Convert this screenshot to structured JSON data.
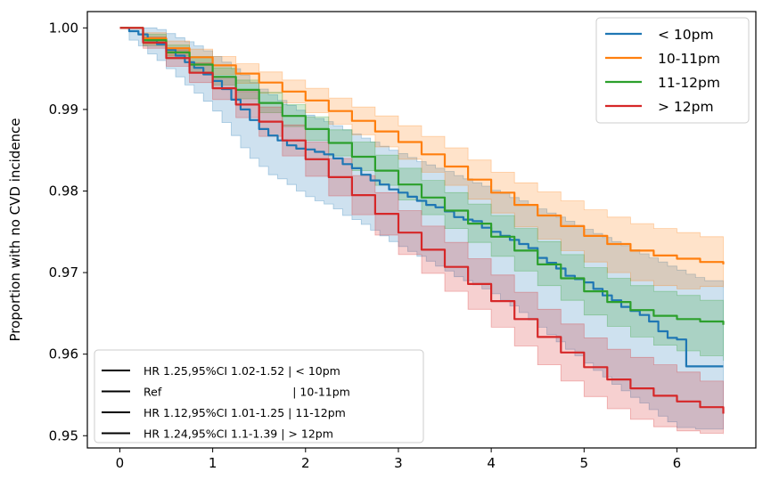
{
  "chart_data": {
    "type": "line",
    "title": "",
    "xlabel": "",
    "ylabel": "Proportion with no CVD incidence",
    "xlim": [
      -0.35,
      6.85
    ],
    "ylim": [
      0.9485,
      1.002
    ],
    "xticks": [
      "0",
      "1",
      "2",
      "3",
      "4",
      "5",
      "6"
    ],
    "yticks": [
      "1.00",
      "0.99",
      "0.98",
      "0.97",
      "0.96",
      "0.95"
    ],
    "grid": false,
    "legend_position": "top-right",
    "series": [
      {
        "name": "< 10pm",
        "color": "#1f77b4",
        "x": [
          0,
          0.1,
          0.2,
          0.3,
          0.4,
          0.5,
          0.6,
          0.7,
          0.8,
          0.9,
          1.0,
          1.1,
          1.2,
          1.3,
          1.4,
          1.5,
          1.6,
          1.7,
          1.8,
          1.9,
          2.0,
          2.1,
          2.2,
          2.3,
          2.4,
          2.5,
          2.6,
          2.7,
          2.8,
          2.9,
          3.0,
          3.1,
          3.2,
          3.3,
          3.4,
          3.5,
          3.6,
          3.7,
          3.8,
          3.9,
          4.0,
          4.1,
          4.2,
          4.3,
          4.4,
          4.5,
          4.6,
          4.7,
          4.8,
          4.9,
          5.0,
          5.1,
          5.2,
          5.3,
          5.4,
          5.5,
          5.6,
          5.7,
          5.8,
          5.9,
          6.0,
          6.1,
          6.2,
          6.3,
          6.4,
          6.5
        ],
        "y": [
          1.0,
          0.9996,
          0.9992,
          0.9985,
          0.998,
          0.9973,
          0.9966,
          0.9958,
          0.9951,
          0.9943,
          0.9935,
          0.9925,
          0.9912,
          0.99,
          0.9887,
          0.9876,
          0.9868,
          0.9862,
          0.9856,
          0.9852,
          0.9851,
          0.9848,
          0.9845,
          0.984,
          0.9833,
          0.9828,
          0.982,
          0.9813,
          0.9808,
          0.9802,
          0.9798,
          0.9793,
          0.9788,
          0.9783,
          0.978,
          0.9775,
          0.9768,
          0.9765,
          0.9763,
          0.9755,
          0.975,
          0.9745,
          0.974,
          0.9735,
          0.973,
          0.9718,
          0.9712,
          0.9705,
          0.9696,
          0.9692,
          0.9688,
          0.968,
          0.9672,
          0.9666,
          0.9658,
          0.9653,
          0.9648,
          0.964,
          0.9628,
          0.962,
          0.9618,
          0.9585,
          0.9585,
          0.9585,
          0.9585,
          0.9585
        ],
        "ci_lower": [
          1.0,
          0.9985,
          0.9978,
          0.9968,
          0.996,
          0.995,
          0.994,
          0.993,
          0.992,
          0.991,
          0.9898,
          0.9884,
          0.9868,
          0.9853,
          0.984,
          0.983,
          0.982,
          0.9815,
          0.9808,
          0.98,
          0.9793,
          0.9788,
          0.9784,
          0.9778,
          0.977,
          0.9765,
          0.9759,
          0.9752,
          0.9745,
          0.9738,
          0.9732,
          0.9726,
          0.972,
          0.9714,
          0.9708,
          0.9702,
          0.9695,
          0.969,
          0.9685,
          0.968,
          0.9674,
          0.9666,
          0.9659,
          0.9651,
          0.9642,
          0.9633,
          0.9624,
          0.9615,
          0.9606,
          0.9598,
          0.9589,
          0.958,
          0.9572,
          0.9563,
          0.9555,
          0.9547,
          0.954,
          0.9532,
          0.9524,
          0.9517,
          0.951,
          0.951,
          0.9508,
          0.9508,
          0.9508,
          0.9508
        ],
        "ci_upper": [
          1.0,
          1.0,
          1.0,
          1.0,
          0.9998,
          0.9993,
          0.9988,
          0.9983,
          0.9978,
          0.9972,
          0.9965,
          0.9958,
          0.995,
          0.9942,
          0.9933,
          0.9925,
          0.9918,
          0.9911,
          0.9905,
          0.9899,
          0.9893,
          0.9889,
          0.9885,
          0.988,
          0.9875,
          0.987,
          0.9865,
          0.986,
          0.9855,
          0.985,
          0.9846,
          0.9841,
          0.9836,
          0.9832,
          0.9828,
          0.9824,
          0.9819,
          0.9815,
          0.981,
          0.9806,
          0.9801,
          0.9797,
          0.9792,
          0.9788,
          0.9783,
          0.9778,
          0.9773,
          0.9768,
          0.9763,
          0.9758,
          0.9753,
          0.9748,
          0.9743,
          0.9738,
          0.9733,
          0.9728,
          0.9723,
          0.9718,
          0.9713,
          0.9708,
          0.9703,
          0.9698,
          0.9694,
          0.969,
          0.969,
          0.969
        ]
      },
      {
        "name": "10-11pm",
        "color": "#ff7f0e",
        "x": [
          0,
          0.25,
          0.5,
          0.75,
          1.0,
          1.25,
          1.5,
          1.75,
          2.0,
          2.25,
          2.5,
          2.75,
          3.0,
          3.25,
          3.5,
          3.75,
          4.0,
          4.25,
          4.5,
          4.75,
          5.0,
          5.25,
          5.5,
          5.75,
          6.0,
          6.25,
          6.5
        ],
        "y": [
          1.0,
          0.9987,
          0.9975,
          0.9964,
          0.9954,
          0.9944,
          0.9933,
          0.9922,
          0.9911,
          0.9898,
          0.9886,
          0.9873,
          0.986,
          0.9845,
          0.983,
          0.9814,
          0.9798,
          0.9783,
          0.977,
          0.9757,
          0.9745,
          0.9735,
          0.9727,
          0.9721,
          0.9717,
          0.9713,
          0.971
        ],
        "ci_lower": [
          1.0,
          0.998,
          0.9966,
          0.9954,
          0.9943,
          0.9932,
          0.992,
          0.9908,
          0.9896,
          0.9882,
          0.9869,
          0.9854,
          0.9839,
          0.9823,
          0.9807,
          0.979,
          0.9773,
          0.9756,
          0.9741,
          0.9727,
          0.9713,
          0.97,
          0.969,
          0.9684,
          0.968,
          0.9683,
          0.9682
        ],
        "ci_upper": [
          1.0,
          0.9994,
          0.9984,
          0.9974,
          0.9965,
          0.9956,
          0.9946,
          0.9936,
          0.9926,
          0.9914,
          0.9903,
          0.9892,
          0.988,
          0.9867,
          0.9853,
          0.9838,
          0.9823,
          0.981,
          0.9799,
          0.9788,
          0.9777,
          0.9768,
          0.976,
          0.9754,
          0.9749,
          0.9744,
          0.9738
        ]
      },
      {
        "name": "11-12pm",
        "color": "#2ca02c",
        "x": [
          0,
          0.25,
          0.5,
          0.75,
          1.0,
          1.25,
          1.5,
          1.75,
          2.0,
          2.25,
          2.5,
          2.75,
          3.0,
          3.25,
          3.5,
          3.75,
          4.0,
          4.25,
          4.5,
          4.75,
          5.0,
          5.25,
          5.5,
          5.75,
          6.0,
          6.25,
          6.5
        ],
        "y": [
          1.0,
          0.9985,
          0.997,
          0.9955,
          0.994,
          0.9924,
          0.9908,
          0.9892,
          0.9876,
          0.9859,
          0.9842,
          0.9825,
          0.9808,
          0.9792,
          0.9776,
          0.976,
          0.9744,
          0.9727,
          0.971,
          0.9693,
          0.9677,
          0.9664,
          0.9654,
          0.9647,
          0.9643,
          0.964,
          0.9636
        ],
        "ci_lower": [
          1.0,
          0.9978,
          0.9962,
          0.9946,
          0.993,
          0.9913,
          0.9896,
          0.9879,
          0.9862,
          0.9843,
          0.9825,
          0.9807,
          0.9789,
          0.9771,
          0.9754,
          0.9737,
          0.972,
          0.9702,
          0.9684,
          0.9666,
          0.9648,
          0.9634,
          0.9621,
          0.9611,
          0.9604,
          0.9598,
          0.9592
        ],
        "ci_upper": [
          1.0,
          0.9992,
          0.9979,
          0.9965,
          0.9951,
          0.9936,
          0.9921,
          0.9906,
          0.9891,
          0.9875,
          0.986,
          0.9844,
          0.9828,
          0.9813,
          0.9798,
          0.9784,
          0.977,
          0.9754,
          0.9738,
          0.9722,
          0.9706,
          0.9693,
          0.9684,
          0.9677,
          0.9672,
          0.9666,
          0.9662
        ]
      },
      {
        "name": "> 12pm",
        "color": "#d62728",
        "x": [
          0,
          0.25,
          0.5,
          0.75,
          1.0,
          1.25,
          1.5,
          1.75,
          2.0,
          2.25,
          2.5,
          2.75,
          3.0,
          3.25,
          3.5,
          3.75,
          4.0,
          4.25,
          4.5,
          4.75,
          5.0,
          5.25,
          5.5,
          5.75,
          6.0,
          6.25,
          6.5
        ],
        "y": [
          1.0,
          0.9982,
          0.9963,
          0.9945,
          0.9926,
          0.9906,
          0.9885,
          0.9862,
          0.9839,
          0.9817,
          0.9795,
          0.9772,
          0.9749,
          0.9728,
          0.9707,
          0.9686,
          0.9665,
          0.9643,
          0.9621,
          0.9602,
          0.9584,
          0.9569,
          0.9558,
          0.9549,
          0.9542,
          0.9535,
          0.9527
        ],
        "ci_lower": [
          1.0,
          0.9975,
          0.9953,
          0.9933,
          0.9912,
          0.989,
          0.9867,
          0.9843,
          0.9818,
          0.9794,
          0.9771,
          0.9746,
          0.9722,
          0.9699,
          0.9677,
          0.9655,
          0.9633,
          0.961,
          0.9587,
          0.9567,
          0.9548,
          0.9533,
          0.952,
          0.9511,
          0.9506,
          0.9503,
          0.9502
        ],
        "ci_upper": [
          1.0,
          0.9989,
          0.9973,
          0.9957,
          0.994,
          0.9922,
          0.9903,
          0.9881,
          0.986,
          0.984,
          0.9819,
          0.9798,
          0.9776,
          0.9757,
          0.9737,
          0.9717,
          0.9697,
          0.9676,
          0.9655,
          0.9637,
          0.962,
          0.9606,
          0.9596,
          0.9587,
          0.9578,
          0.9567,
          0.9552
        ]
      }
    ],
    "hr_legend": [
      {
        "label": "HR 1.25,95%CI 1.02-1.52 | < 10pm"
      },
      {
        "label": "Ref                                     | 10-11pm"
      },
      {
        "label": "HR 1.12,95%CI 1.01-1.25 | 11-12pm"
      },
      {
        "label": "HR 1.24,95%CI 1.1-1.39 | > 12pm"
      }
    ]
  }
}
